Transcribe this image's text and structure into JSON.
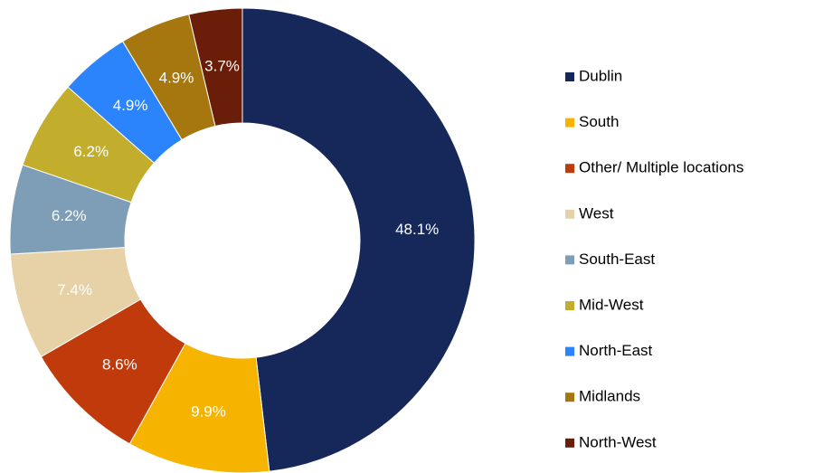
{
  "chart_data": {
    "type": "donut",
    "categories": [
      "Dublin",
      "South",
      "Other/ Multiple locations",
      "West",
      "South-East",
      "Mid-West",
      "North-East",
      "Midlands",
      "North-West"
    ],
    "values": [
      48.1,
      9.9,
      8.6,
      7.4,
      6.2,
      6.2,
      4.9,
      4.9,
      3.7
    ],
    "value_labels": [
      "48.1%",
      "9.9%",
      "8.6%",
      "7.4%",
      "6.2%",
      "6.2%",
      "4.9%",
      "4.9%",
      "3.7%"
    ],
    "colors": [
      "#16275a",
      "#f6b300",
      "#c03a0c",
      "#e6d2a6",
      "#7e9db6",
      "#c2ae2c",
      "#2b84fb",
      "#a6770f",
      "#6a1e09"
    ],
    "legend": "right"
  }
}
